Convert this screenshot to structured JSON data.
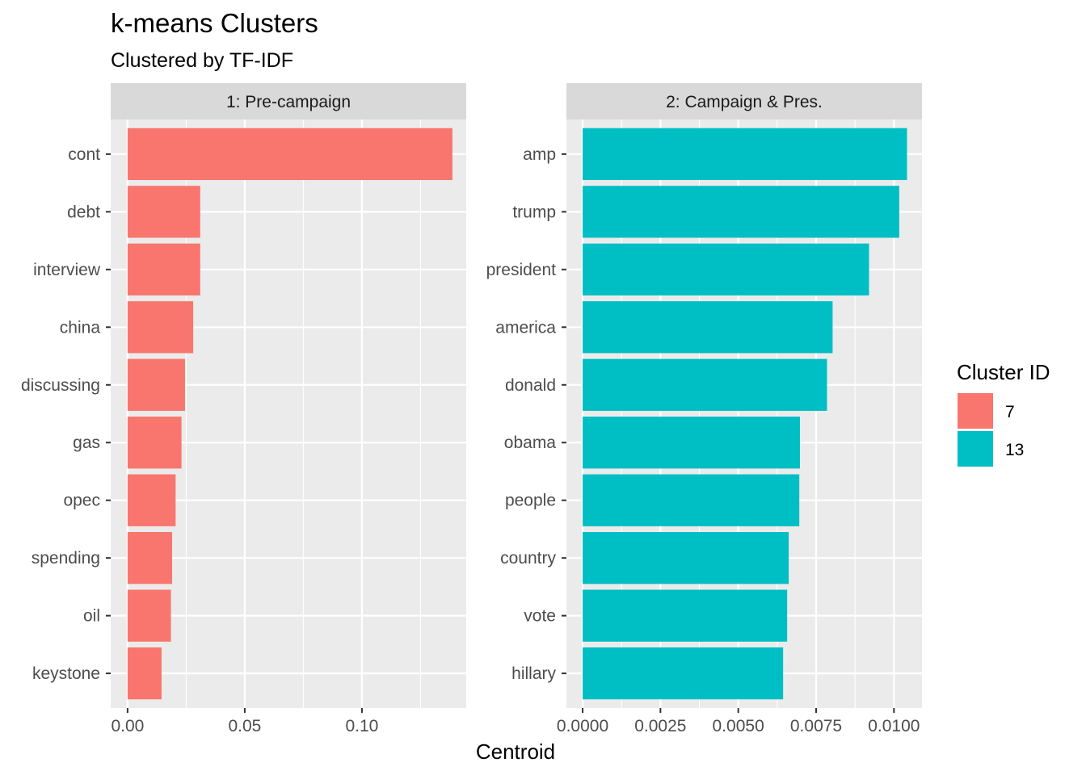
{
  "chart_data": {
    "type": "bar",
    "orientation": "horizontal",
    "title": "k-means Clusters",
    "subtitle": "Clustered by TF-IDF",
    "xlabel": "Centroid",
    "legend": {
      "title": "Cluster ID",
      "position": "right",
      "entries": [
        {
          "label": "7",
          "color": "#F8766D"
        },
        {
          "label": "13",
          "color": "#00BFC4"
        }
      ]
    },
    "grid": true,
    "facets": [
      {
        "strip": "1: Pre-campaign",
        "cluster": "7",
        "color": "#F8766D",
        "xlim": [
          -0.0072,
          0.1445
        ],
        "xticks": [
          0,
          0.05,
          0.1
        ],
        "xtick_labels": [
          "0.00",
          "0.05",
          "0.10"
        ],
        "categories": [
          "cont",
          "debt",
          "interview",
          "china",
          "discussing",
          "gas",
          "opec",
          "spending",
          "oil",
          "keystone"
        ],
        "values": [
          0.1386,
          0.031,
          0.031,
          0.028,
          0.0245,
          0.023,
          0.0205,
          0.019,
          0.0185,
          0.0145
        ]
      },
      {
        "strip": "2: Campaign & Pres.",
        "cluster": "13",
        "color": "#00BFC4",
        "xlim": [
          -0.00052,
          0.0109
        ],
        "xticks": [
          0,
          0.0025,
          0.005,
          0.0075,
          0.01
        ],
        "xtick_labels": [
          "0.0000",
          "0.0025",
          "0.0050",
          "0.0075",
          "0.0100"
        ],
        "categories": [
          "amp",
          "trump",
          "president",
          "america",
          "donald",
          "obama",
          "people",
          "country",
          "vote",
          "hillary"
        ],
        "values": [
          0.01042,
          0.01017,
          0.0092,
          0.00803,
          0.00785,
          0.00698,
          0.00696,
          0.00662,
          0.00657,
          0.00644
        ]
      }
    ]
  }
}
